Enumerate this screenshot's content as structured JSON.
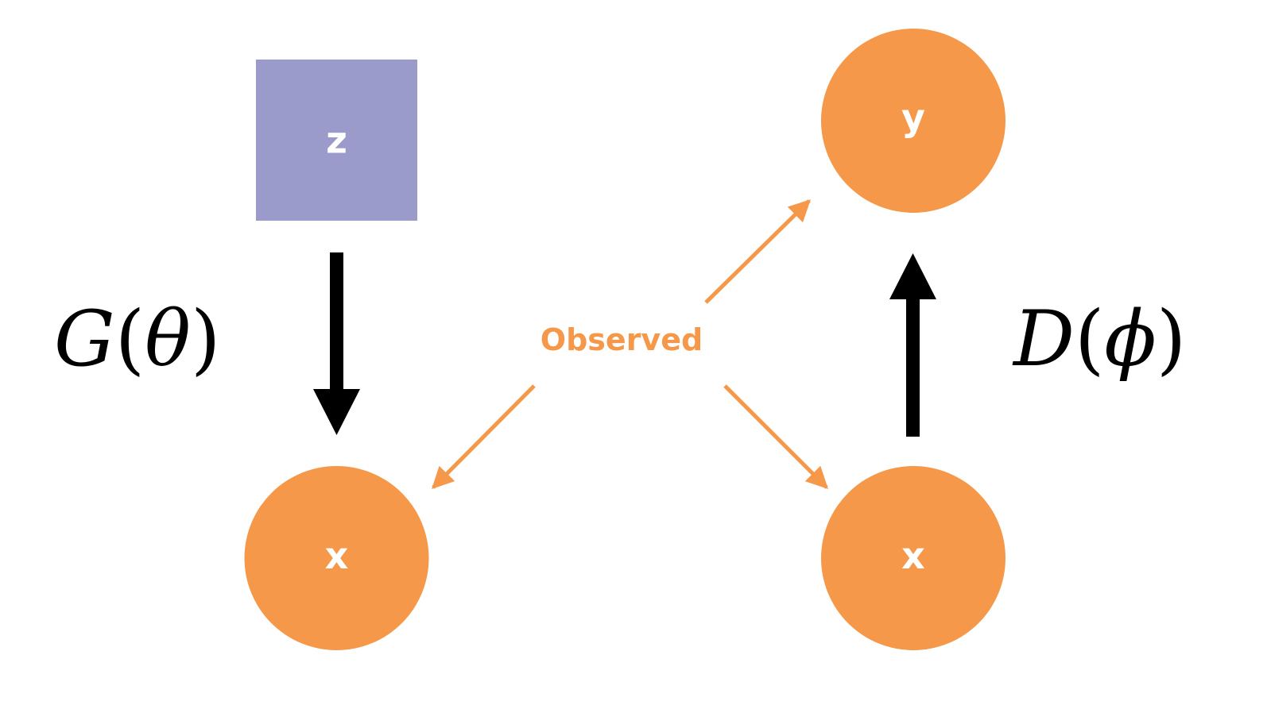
{
  "colors": {
    "latent_node": "#9a9bca",
    "observed_node": "#f59849",
    "observed_arrow": "#f59849",
    "model_arrow": "#000000",
    "node_text": "#ffffff",
    "background": "#ffffff"
  },
  "generator": {
    "latent_node": {
      "label": "z",
      "shape": "square"
    },
    "output_node": {
      "label": "x",
      "shape": "circle"
    },
    "arrow_direction": "down",
    "formula": {
      "name": "G",
      "open": "(",
      "param": "θ",
      "close": ")"
    }
  },
  "discriminator": {
    "input_node": {
      "label": "x",
      "shape": "circle"
    },
    "output_node": {
      "label": "y",
      "shape": "circle"
    },
    "arrow_direction": "up",
    "formula": {
      "name": "D",
      "open": "(",
      "param": "ϕ",
      "close": ")"
    }
  },
  "observed": {
    "label": "Observed",
    "targets": [
      "generator x",
      "discriminator x",
      "discriminator y"
    ]
  }
}
